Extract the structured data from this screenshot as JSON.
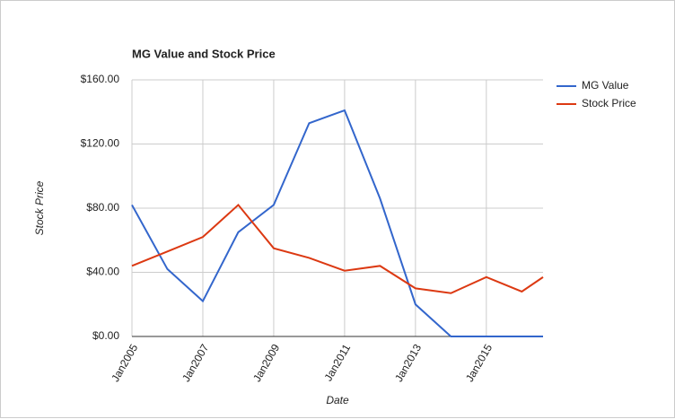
{
  "chart_data": {
    "type": "line",
    "title": "MG Value and Stock Price",
    "x_label": "Date",
    "y_label": "Stock Price",
    "x": [
      2005,
      2006,
      2007,
      2008,
      2009,
      2010,
      2011,
      2012,
      2013,
      2014,
      2015,
      2016,
      2016.6
    ],
    "series": [
      {
        "name": "MG Value",
        "color": "#3366cc",
        "values": [
          82,
          42,
          22,
          65,
          82,
          133,
          141,
          86,
          20,
          0,
          0,
          0,
          0
        ]
      },
      {
        "name": "Stock Price",
        "color": "#dc3912",
        "values": [
          44,
          53,
          62,
          82,
          55,
          49,
          41,
          44,
          30,
          27,
          37,
          28,
          37
        ]
      }
    ],
    "xlim": [
      2005,
      2016.6
    ],
    "xticks": [
      {
        "value": 2005,
        "label": "Jan2005"
      },
      {
        "value": 2007,
        "label": "Jan2007"
      },
      {
        "value": 2009,
        "label": "Jan2009"
      },
      {
        "value": 2011,
        "label": "Jan2011"
      },
      {
        "value": 2013,
        "label": "Jan2013"
      },
      {
        "value": 2015,
        "label": "Jan2015"
      }
    ],
    "ylim": [
      0,
      160
    ],
    "yticks": [
      {
        "value": 0,
        "label": "$0.00"
      },
      {
        "value": 40,
        "label": "$40.00"
      },
      {
        "value": 80,
        "label": "$80.00"
      },
      {
        "value": 120,
        "label": "$120.00"
      },
      {
        "value": 160,
        "label": "$160.00"
      }
    ],
    "grid": true,
    "legend": "right"
  }
}
